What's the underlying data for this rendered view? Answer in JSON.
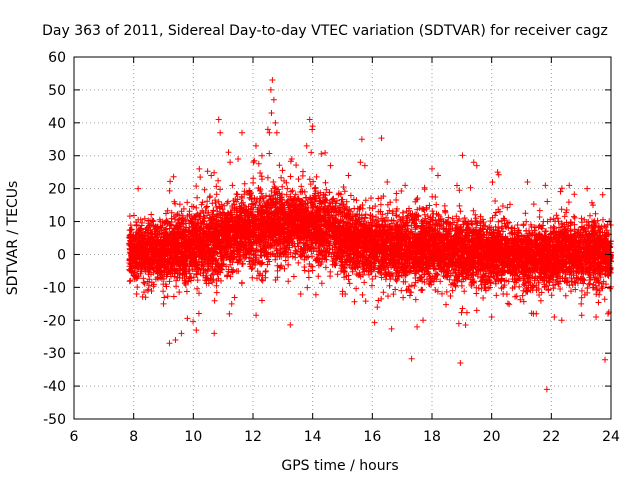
{
  "chart_data": {
    "type": "scatter",
    "title": "Day 363 of 2011, Sidereal Day-to-day VTEC variation (SDTVAR) for receiver cagz",
    "xlabel": "GPS time / hours",
    "ylabel": "SDTVAR / TECUs",
    "xlim": [
      6,
      24
    ],
    "ylim": [
      -50,
      60
    ],
    "xticks": [
      6,
      8,
      10,
      12,
      14,
      16,
      18,
      20,
      22,
      24
    ],
    "yticks": [
      -50,
      -40,
      -30,
      -20,
      -10,
      0,
      10,
      20,
      30,
      40,
      50,
      60
    ],
    "grid": true,
    "marker": "+",
    "series_color": "#ff0000",
    "series": [
      {
        "name": "SDTVAR",
        "density_model": {
          "x_range": [
            7.85,
            24.0
          ],
          "baseline_points": [
            [
              7.9,
              1
            ],
            [
              9.0,
              1
            ],
            [
              10.0,
              3
            ],
            [
              11.0,
              5
            ],
            [
              12.0,
              7
            ],
            [
              12.8,
              9
            ],
            [
              13.5,
              10
            ],
            [
              14.2,
              8
            ],
            [
              15.0,
              5
            ],
            [
              16.0,
              3
            ],
            [
              17.0,
              2
            ],
            [
              18.0,
              1.5
            ],
            [
              19.0,
              1
            ],
            [
              20.0,
              0
            ],
            [
              21.0,
              -0.5
            ],
            [
              22.0,
              0
            ],
            [
              23.0,
              0.5
            ],
            [
              24.0,
              0
            ]
          ],
          "spread_points": [
            [
              7.9,
              4
            ],
            [
              10.0,
              5
            ],
            [
              12.5,
              6
            ],
            [
              14.0,
              5
            ],
            [
              16.0,
              5
            ],
            [
              18.0,
              5
            ],
            [
              20.0,
              4.5
            ],
            [
              22.0,
              4.5
            ],
            [
              24.0,
              5
            ]
          ],
          "n_points": 9000
        },
        "outliers": [
          [
            12.65,
            53
          ],
          [
            12.6,
            50
          ],
          [
            12.7,
            47
          ],
          [
            12.62,
            43
          ],
          [
            12.5,
            38
          ],
          [
            12.75,
            40
          ],
          [
            12.8,
            37
          ],
          [
            12.55,
            37
          ],
          [
            13.9,
            41
          ],
          [
            14.0,
            39
          ],
          [
            13.8,
            33
          ],
          [
            13.95,
            31
          ],
          [
            10.85,
            41
          ],
          [
            10.9,
            37
          ],
          [
            15.65,
            35
          ],
          [
            15.6,
            28
          ],
          [
            15.75,
            27
          ],
          [
            12.1,
            33
          ],
          [
            12.3,
            30
          ],
          [
            13.3,
            29
          ],
          [
            11.5,
            29
          ],
          [
            8.15,
            20
          ],
          [
            16.5,
            22
          ],
          [
            17.1,
            21
          ],
          [
            18.0,
            26
          ],
          [
            19.4,
            28
          ],
          [
            19.5,
            27
          ],
          [
            20.2,
            25
          ],
          [
            21.2,
            22
          ],
          [
            21.8,
            21
          ],
          [
            22.6,
            21
          ],
          [
            23.2,
            20
          ],
          [
            18.2,
            24
          ],
          [
            14.6,
            27
          ],
          [
            15.2,
            24
          ],
          [
            10.2,
            26
          ],
          [
            10.6,
            24
          ],
          [
            9.2,
            -27
          ],
          [
            9.6,
            -24
          ],
          [
            9.4,
            -26
          ],
          [
            10.7,
            -24
          ],
          [
            10.1,
            -23
          ],
          [
            18.95,
            -33
          ],
          [
            21.85,
            -41
          ],
          [
            23.8,
            -32
          ],
          [
            17.5,
            -22
          ],
          [
            17.7,
            -20
          ],
          [
            18.9,
            -21
          ],
          [
            20.0,
            -19
          ],
          [
            22.1,
            -19
          ],
          [
            22.35,
            -20
          ],
          [
            23.5,
            -19
          ],
          [
            23.9,
            -18
          ],
          [
            8.1,
            -12
          ],
          [
            8.4,
            -13
          ],
          [
            9.0,
            -15
          ],
          [
            12.3,
            -14
          ],
          [
            13.6,
            -12
          ],
          [
            16.2,
            -14
          ],
          [
            15.0,
            -12
          ],
          [
            19.5,
            -17
          ],
          [
            21.4,
            -18
          ],
          [
            23.0,
            -15
          ]
        ]
      }
    ]
  }
}
